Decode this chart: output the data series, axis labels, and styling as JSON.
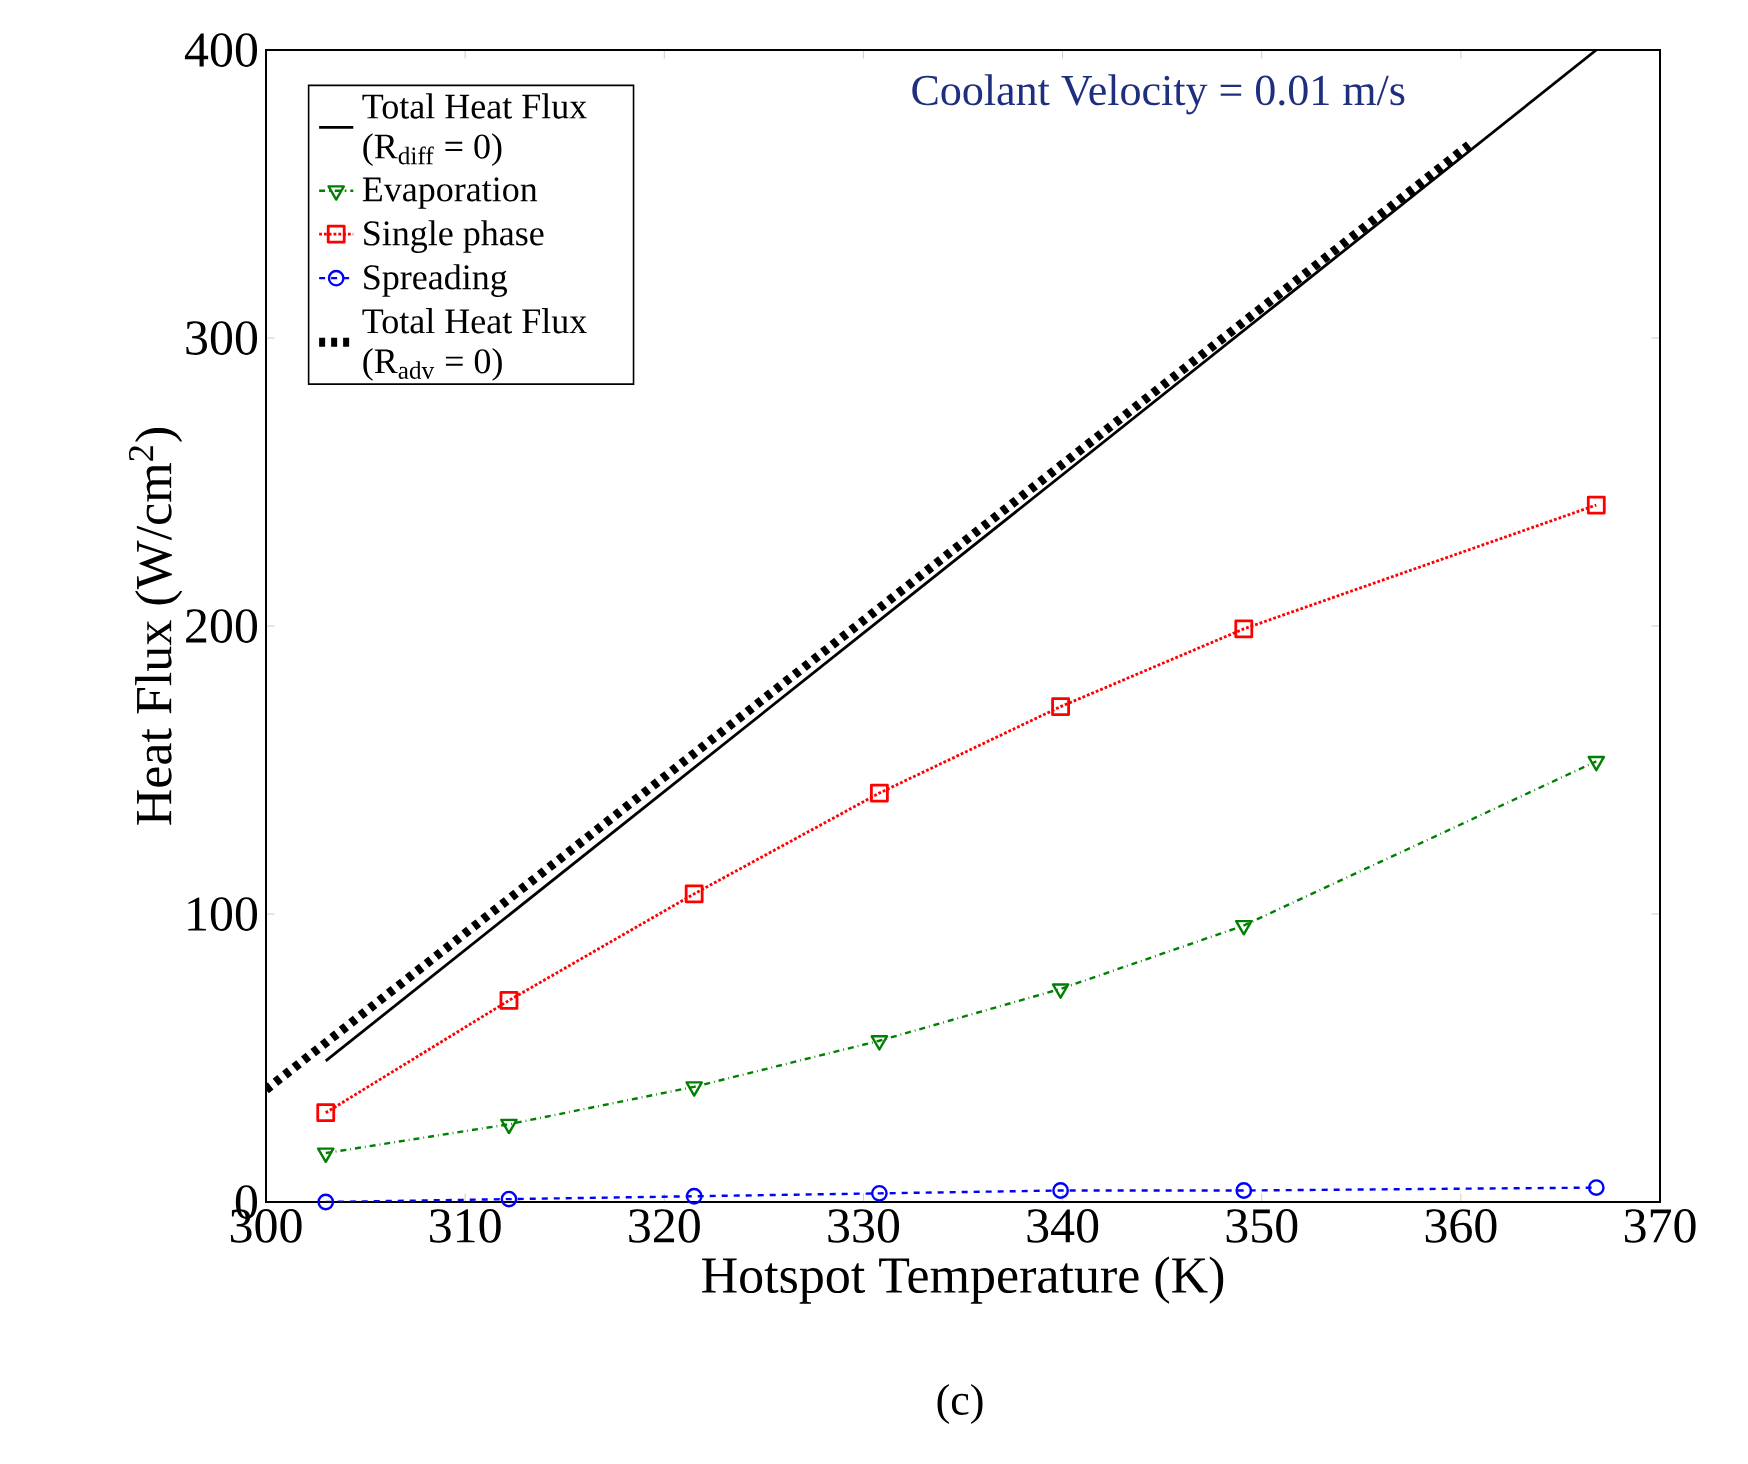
{
  "chart_data": {
    "type": "line",
    "xlabel": "Hotspot Temperature (K)",
    "ylabel": "Heat Flux (W/cm$^{2}$)",
    "xlim": [
      300,
      370
    ],
    "ylim": [
      0,
      400
    ],
    "xticks": [
      300,
      310,
      320,
      330,
      340,
      350,
      360,
      370
    ],
    "yticks": [
      0,
      100,
      200,
      300,
      400
    ],
    "grid": false,
    "legend": "top left",
    "annotations": [
      "Coolant Velocity = 0.01 m/s",
      "(c)"
    ],
    "series": [
      {
        "name": "Total Heat Flux (R$_{diff}$ = 0)",
        "color": "#000000",
        "x": [
          303,
          366.8
        ],
        "values": [
          49,
          400
        ],
        "marker": "none",
        "line_style": "solid"
      },
      {
        "name": "Evaporation",
        "color": "#008000",
        "x": [
          303,
          312.2,
          321.5,
          330.8,
          339.9,
          349.1,
          366.8
        ],
        "values": [
          17,
          27,
          40,
          56,
          74,
          96,
          153
        ],
        "marker": "triangle",
        "line_style": "dashdot"
      },
      {
        "name": "Single phase",
        "color": "#ff0000",
        "x": [
          303,
          312.2,
          321.5,
          330.8,
          339.9,
          349.1,
          366.8
        ],
        "values": [
          31,
          70,
          107,
          142,
          172,
          199,
          242
        ],
        "marker": "square",
        "line_style": "dotted"
      },
      {
        "name": "Spreading",
        "color": "#0000ff",
        "x": [
          303,
          312.2,
          321.5,
          330.8,
          339.9,
          349.1,
          366.8
        ],
        "values": [
          0,
          1,
          2,
          3,
          4,
          4,
          5
        ],
        "marker": "circle",
        "line_style": "dashed"
      },
      {
        "name": "Total Heat Flux (R$_{adv}$ = 0)",
        "color": "#000000",
        "x": [
          300,
          360.4
        ],
        "values": [
          39,
          367
        ],
        "marker": "none",
        "line_style": "thickdotted"
      }
    ]
  }
}
